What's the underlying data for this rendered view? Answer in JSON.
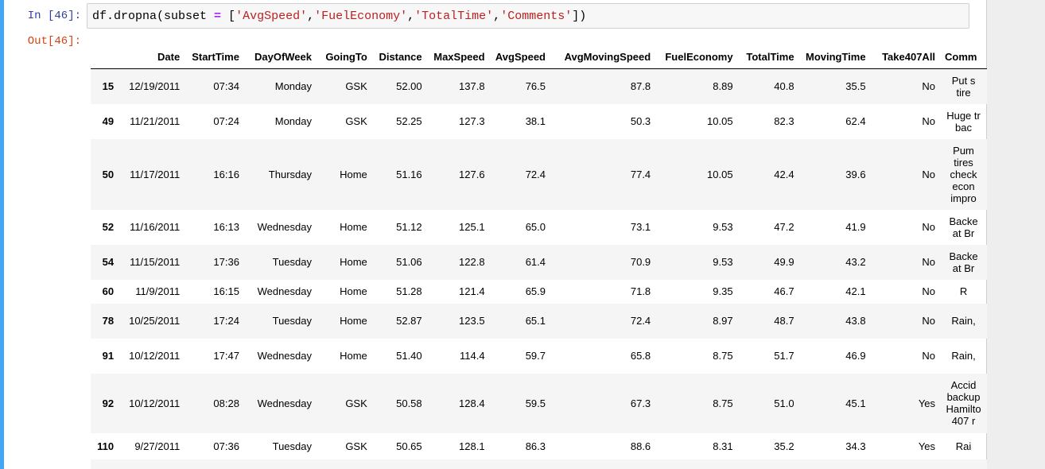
{
  "cell": {
    "in_prompt": "In [46]:",
    "out_prompt": "Out[46]:",
    "code": {
      "fn": "df.dropna(subset ",
      "eq": "=",
      "open": " [",
      "s1": "'AvgSpeed'",
      "comma1": ",",
      "s2": "'FuelEconomy'",
      "comma2": ",",
      "s3": "'TotalTime'",
      "comma3": ",",
      "s4": "'Comments'",
      "close": "])"
    }
  },
  "table": {
    "columns": [
      "",
      "Date",
      "StartTime",
      "DayOfWeek",
      "GoingTo",
      "Distance",
      "MaxSpeed",
      "AvgSpeed",
      "AvgMovingSpeed",
      "FuelEconomy",
      "TotalTime",
      "MovingTime",
      "Take407All",
      "Comm"
    ],
    "rows": [
      {
        "index": "15",
        "Date": "12/19/2011",
        "StartTime": "07:34",
        "DayOfWeek": "Monday",
        "GoingTo": "GSK",
        "Distance": "52.00",
        "MaxSpeed": "137.8",
        "AvgSpeed": "76.5",
        "AvgMovingSpeed": "87.8",
        "FuelEconomy": "8.89",
        "TotalTime": "40.8",
        "MovingTime": "35.5",
        "Take407All": "No",
        "Comments": "Put s tire"
      },
      {
        "index": "49",
        "Date": "11/21/2011",
        "StartTime": "07:24",
        "DayOfWeek": "Monday",
        "GoingTo": "GSK",
        "Distance": "52.25",
        "MaxSpeed": "127.3",
        "AvgSpeed": "38.1",
        "AvgMovingSpeed": "50.3",
        "FuelEconomy": "10.05",
        "TotalTime": "82.3",
        "MovingTime": "62.4",
        "Take407All": "No",
        "Comments": "Huge tr bac"
      },
      {
        "index": "50",
        "Date": "11/17/2011",
        "StartTime": "16:16",
        "DayOfWeek": "Thursday",
        "GoingTo": "Home",
        "Distance": "51.16",
        "MaxSpeed": "127.6",
        "AvgSpeed": "72.4",
        "AvgMovingSpeed": "77.4",
        "FuelEconomy": "10.05",
        "TotalTime": "42.4",
        "MovingTime": "39.6",
        "Take407All": "No",
        "Comments": "Pum tires check econ impro"
      },
      {
        "index": "52",
        "Date": "11/16/2011",
        "StartTime": "16:13",
        "DayOfWeek": "Wednesday",
        "GoingTo": "Home",
        "Distance": "51.12",
        "MaxSpeed": "125.1",
        "AvgSpeed": "65.0",
        "AvgMovingSpeed": "73.1",
        "FuelEconomy": "9.53",
        "TotalTime": "47.2",
        "MovingTime": "41.9",
        "Take407All": "No",
        "Comments": "Backe at Br"
      },
      {
        "index": "54",
        "Date": "11/15/2011",
        "StartTime": "17:36",
        "DayOfWeek": "Tuesday",
        "GoingTo": "Home",
        "Distance": "51.06",
        "MaxSpeed": "122.8",
        "AvgSpeed": "61.4",
        "AvgMovingSpeed": "70.9",
        "FuelEconomy": "9.53",
        "TotalTime": "49.9",
        "MovingTime": "43.2",
        "Take407All": "No",
        "Comments": "Backe at Br"
      },
      {
        "index": "60",
        "Date": "11/9/2011",
        "StartTime": "16:15",
        "DayOfWeek": "Wednesday",
        "GoingTo": "Home",
        "Distance": "51.28",
        "MaxSpeed": "121.4",
        "AvgSpeed": "65.9",
        "AvgMovingSpeed": "71.8",
        "FuelEconomy": "9.35",
        "TotalTime": "46.7",
        "MovingTime": "42.1",
        "Take407All": "No",
        "Comments": "R"
      },
      {
        "index": "78",
        "Date": "10/25/2011",
        "StartTime": "17:24",
        "DayOfWeek": "Tuesday",
        "GoingTo": "Home",
        "Distance": "52.87",
        "MaxSpeed": "123.5",
        "AvgSpeed": "65.1",
        "AvgMovingSpeed": "72.4",
        "FuelEconomy": "8.97",
        "TotalTime": "48.7",
        "MovingTime": "43.8",
        "Take407All": "No",
        "Comments": "Rain,"
      },
      {
        "index": "91",
        "Date": "10/12/2011",
        "StartTime": "17:47",
        "DayOfWeek": "Wednesday",
        "GoingTo": "Home",
        "Distance": "51.40",
        "MaxSpeed": "114.4",
        "AvgSpeed": "59.7",
        "AvgMovingSpeed": "65.8",
        "FuelEconomy": "8.75",
        "TotalTime": "51.7",
        "MovingTime": "46.9",
        "Take407All": "No",
        "Comments": "Rain,"
      },
      {
        "index": "92",
        "Date": "10/12/2011",
        "StartTime": "08:28",
        "DayOfWeek": "Wednesday",
        "GoingTo": "GSK",
        "Distance": "50.58",
        "MaxSpeed": "128.4",
        "AvgSpeed": "59.5",
        "AvgMovingSpeed": "67.3",
        "FuelEconomy": "8.75",
        "TotalTime": "51.0",
        "MovingTime": "45.1",
        "Take407All": "Yes",
        "Comments": "Accid backup Hamilto 407 r"
      },
      {
        "index": "110",
        "Date": "9/27/2011",
        "StartTime": "07:36",
        "DayOfWeek": "Tuesday",
        "GoingTo": "GSK",
        "Distance": "50.65",
        "MaxSpeed": "128.1",
        "AvgSpeed": "86.3",
        "AvgMovingSpeed": "88.6",
        "FuelEconomy": "8.31",
        "TotalTime": "35.2",
        "MovingTime": "34.3",
        "Take407All": "Yes",
        "Comments": "Rai"
      }
    ]
  }
}
